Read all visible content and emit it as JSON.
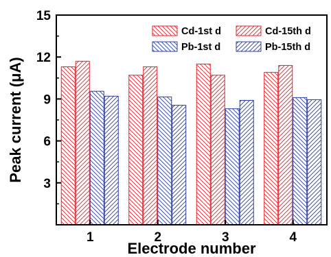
{
  "chart_data": {
    "type": "bar",
    "xlabel": "Electrode number",
    "ylabel": "Peak current (μA)",
    "categories": [
      "1",
      "2",
      "3",
      "4"
    ],
    "ylim": [
      0,
      15
    ],
    "yticks": [
      "3",
      "6",
      "9",
      "12",
      "15"
    ],
    "legend_position": "top-right",
    "series": [
      {
        "name": "Cd-1st d",
        "values": [
          11.3,
          10.7,
          11.5,
          10.9
        ],
        "color": "#e8202a",
        "pattern": "hatch-down"
      },
      {
        "name": "Cd-15th d",
        "values": [
          11.7,
          11.3,
          10.7,
          11.4
        ],
        "color": "#e8202a",
        "pattern": "hatch-up"
      },
      {
        "name": "Pb-1st d",
        "values": [
          9.55,
          9.15,
          8.3,
          9.1
        ],
        "color": "#2b3c9e",
        "pattern": "hatch-down"
      },
      {
        "name": "Pb-15th d",
        "values": [
          9.2,
          8.55,
          8.9,
          8.95
        ],
        "color": "#2b3c9e",
        "pattern": "hatch-up"
      }
    ]
  }
}
